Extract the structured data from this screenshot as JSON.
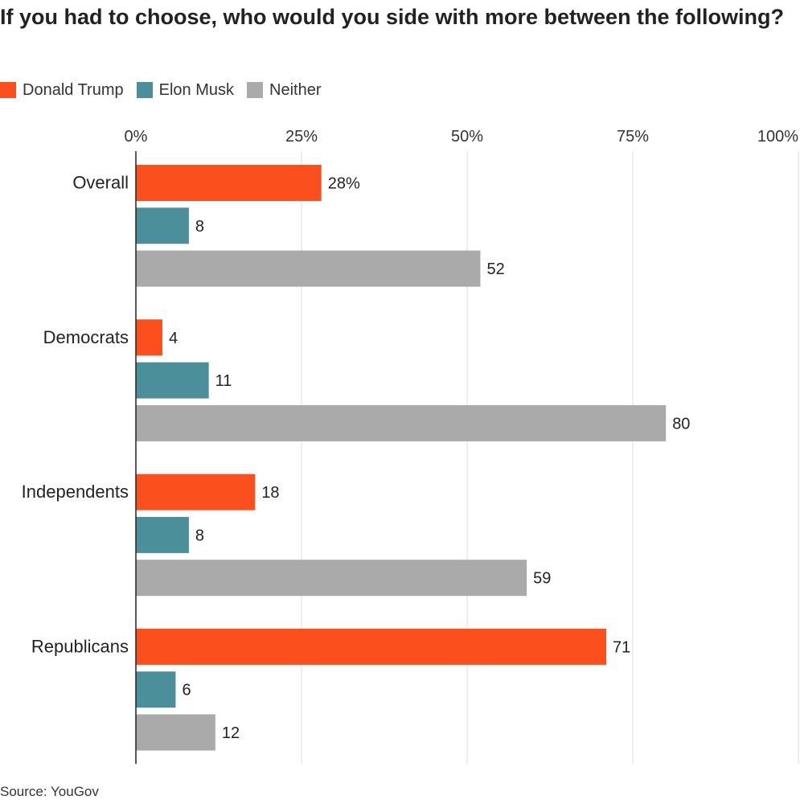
{
  "chart_data": {
    "type": "bar",
    "orientation": "horizontal",
    "title": "If you had to choose, who would you side with more between the following?",
    "categories": [
      "Overall",
      "Democrats",
      "Independents",
      "Republicans"
    ],
    "series": [
      {
        "name": "Donald Trump",
        "color": "#fc4f1e",
        "values": [
          28,
          4,
          18,
          71
        ]
      },
      {
        "name": "Elon Musk",
        "color": "#4b8f9a",
        "values": [
          8,
          11,
          8,
          6
        ]
      },
      {
        "name": "Neither",
        "color": "#aaaaaa",
        "values": [
          52,
          80,
          59,
          12
        ]
      }
    ],
    "data_labels": [
      [
        "28%",
        "8",
        "52"
      ],
      [
        "4",
        "11",
        "80"
      ],
      [
        "18",
        "8",
        "59"
      ],
      [
        "71",
        "6",
        "12"
      ]
    ],
    "xlim": [
      0,
      100
    ],
    "xticks": [
      0,
      25,
      50,
      75,
      100
    ],
    "xtick_labels": [
      "0%",
      "25%",
      "50%",
      "75%",
      "100%"
    ],
    "grid": true,
    "legend_position": "top-left",
    "source": "Source: YouGov"
  }
}
